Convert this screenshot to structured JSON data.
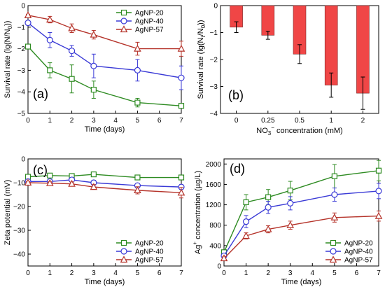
{
  "chart_data": [
    {
      "type": "line",
      "panel_label": "(a)",
      "xlabel": "Time (days)",
      "ylabel_main": "Survival rate (lg(N/N",
      "ylabel_sub": "0",
      "ylabel_tail": "))",
      "x": [
        0,
        1,
        2,
        3,
        5,
        7
      ],
      "xlim": [
        0,
        7
      ],
      "ylim": [
        -5,
        0
      ],
      "yticks": [
        0,
        -1,
        -2,
        -3,
        -4,
        -5
      ],
      "xticks": [
        0,
        1,
        2,
        3,
        4,
        5,
        6,
        7
      ],
      "legend_position": "top-right",
      "series": [
        {
          "name": "AgNP-20",
          "color": "#2e8b22",
          "marker": "square",
          "values": [
            -1.9,
            -3.0,
            -3.4,
            -3.9,
            -4.5,
            -4.65
          ],
          "errors": [
            0,
            0.35,
            0.65,
            0.4,
            0.2,
            0.05
          ]
        },
        {
          "name": "AgNP-40",
          "color": "#3a3ad6",
          "marker": "circle",
          "values": [
            -0.8,
            -1.6,
            -2.1,
            -2.8,
            -3.0,
            -3.35
          ],
          "errors": [
            0.1,
            0.35,
            0.25,
            0.55,
            0.5,
            0.55
          ]
        },
        {
          "name": "AgNP-57",
          "color": "#b5332a",
          "marker": "triangle",
          "values": [
            -0.45,
            -0.65,
            -1.05,
            -1.35,
            -2.0,
            -2.0
          ],
          "errors": [
            0.05,
            0.15,
            0.2,
            0.2,
            0.3,
            0.35
          ]
        }
      ]
    },
    {
      "type": "bar",
      "panel_label": "(b)",
      "ylabel_main": "Survival rate (lg(N",
      "ylabel_sub": "t",
      "ylabel_mid": "/N",
      "ylabel_sub2": "0",
      "ylabel_tail": "))",
      "xlabel_pre": "NO",
      "xlabel_sub": "3",
      "xlabel_sup": "−",
      "xlabel_post": " concentration (mM)",
      "categories": [
        "0",
        "0.25",
        "0.5",
        "1",
        "2"
      ],
      "values": [
        -0.8,
        -1.1,
        -1.8,
        -2.95,
        -3.25
      ],
      "errors": [
        0.2,
        0.15,
        0.35,
        0.45,
        0.6
      ],
      "ylim": [
        -4,
        0
      ],
      "yticks": [
        0,
        -1,
        -2,
        -3,
        -4
      ],
      "bar_color": "#f04646"
    },
    {
      "type": "line",
      "panel_label": "(c)",
      "xlabel": "Time (days)",
      "ylabel": "Zeta potential (mV)",
      "x": [
        0,
        1,
        2,
        3,
        5,
        7
      ],
      "xlim": [
        0,
        7
      ],
      "ylim": [
        -45,
        0
      ],
      "yticks": [
        0,
        -10,
        -20,
        -30,
        -40
      ],
      "xticks": [
        0,
        1,
        2,
        3,
        4,
        5,
        6,
        7
      ],
      "legend_position": "bottom-right",
      "series": [
        {
          "name": "AgNP-20",
          "color": "#2e8b22",
          "marker": "square",
          "values": [
            -7.5,
            -7.0,
            -7.2,
            -6.5,
            -7.8,
            -7.8
          ],
          "errors": [
            0.3,
            0.4,
            0.5,
            0.4,
            0.5,
            0.5
          ]
        },
        {
          "name": "AgNP-40",
          "color": "#3a3ad6",
          "marker": "circle",
          "values": [
            -9.5,
            -9.5,
            -8.8,
            -10.0,
            -11.2,
            -11.8
          ],
          "errors": [
            0.4,
            0.6,
            0.9,
            1.0,
            0.8,
            1.0
          ]
        },
        {
          "name": "AgNP-57",
          "color": "#b5332a",
          "marker": "triangle",
          "values": [
            -10.0,
            -10.2,
            -10.5,
            -11.8,
            -13.2,
            -14.2
          ],
          "errors": [
            0.5,
            0.6,
            0.8,
            1.0,
            1.5,
            2.2
          ]
        }
      ]
    },
    {
      "type": "line",
      "panel_label": "(d)",
      "xlabel": "Time (days)",
      "ylabel_pre": "Ag",
      "ylabel_sup": "+",
      "ylabel_post": " concentration (µg/L)",
      "x": [
        0,
        1,
        2,
        3,
        5,
        7
      ],
      "xlim": [
        0,
        7
      ],
      "ylim": [
        0,
        2100
      ],
      "yticks": [
        0,
        400,
        800,
        1200,
        1600,
        2000
      ],
      "xticks": [
        0,
        1,
        2,
        3,
        4,
        5,
        6,
        7
      ],
      "legend_position": "bottom-right",
      "series": [
        {
          "name": "AgNP-20",
          "color": "#2e8b22",
          "marker": "square",
          "values": [
            270,
            1250,
            1350,
            1480,
            1760,
            1870
          ],
          "errors": [
            40,
            150,
            150,
            180,
            230,
            200
          ]
        },
        {
          "name": "AgNP-40",
          "color": "#3a3ad6",
          "marker": "circle",
          "values": [
            200,
            870,
            1150,
            1230,
            1400,
            1470
          ],
          "errors": [
            30,
            120,
            120,
            130,
            130,
            150
          ]
        },
        {
          "name": "AgNP-57",
          "color": "#b5332a",
          "marker": "triangle",
          "values": [
            150,
            590,
            720,
            800,
            950,
            980
          ],
          "errors": [
            30,
            60,
            70,
            80,
            90,
            100
          ]
        }
      ]
    }
  ]
}
